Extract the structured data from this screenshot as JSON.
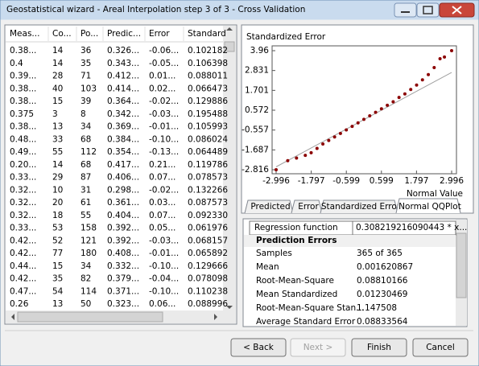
{
  "window": {
    "title": "Geostatistical wizard - Areal Interpolation step 3 of 3 - Cross Validation"
  },
  "table": {
    "columns": [
      "Meas...",
      "Co...",
      "Po...",
      "Predic...",
      "Error",
      "Standard"
    ],
    "rows": [
      [
        "0.38...",
        "14",
        "36",
        "0.326...",
        "-0.06...",
        "0.102182"
      ],
      [
        "0.4",
        "14",
        "35",
        "0.343...",
        "-0.05...",
        "0.106398"
      ],
      [
        "0.39...",
        "28",
        "71",
        "0.412...",
        "0.01...",
        "0.088011"
      ],
      [
        "0.38...",
        "40",
        "103",
        "0.414...",
        "0.02...",
        "0.066473"
      ],
      [
        "0.38...",
        "15",
        "39",
        "0.364...",
        "-0.02...",
        "0.129886"
      ],
      [
        "0.375",
        "3",
        "8",
        "0.342...",
        "-0.03...",
        "0.195488"
      ],
      [
        "0.38...",
        "13",
        "34",
        "0.369...",
        "-0.01...",
        "0.105993"
      ],
      [
        "0.48...",
        "33",
        "68",
        "0.384...",
        "-0.10...",
        "0.086024"
      ],
      [
        "0.49...",
        "55",
        "112",
        "0.354...",
        "-0.13...",
        "0.064489"
      ],
      [
        "0.20...",
        "14",
        "68",
        "0.417...",
        "0.21...",
        "0.119786"
      ],
      [
        "0.33...",
        "29",
        "87",
        "0.406...",
        "0.07...",
        "0.078573"
      ],
      [
        "0.32...",
        "10",
        "31",
        "0.298...",
        "-0.02...",
        "0.132266"
      ],
      [
        "0.32...",
        "20",
        "61",
        "0.361...",
        "0.03...",
        "0.087573"
      ],
      [
        "0.32...",
        "18",
        "55",
        "0.404...",
        "0.07...",
        "0.092330"
      ],
      [
        "0.33...",
        "53",
        "158",
        "0.392...",
        "0.05...",
        "0.061976"
      ],
      [
        "0.42...",
        "52",
        "121",
        "0.392...",
        "-0.03...",
        "0.068157"
      ],
      [
        "0.42...",
        "77",
        "180",
        "0.408...",
        "-0.01...",
        "0.065892"
      ],
      [
        "0.44...",
        "15",
        "34",
        "0.332...",
        "-0.10...",
        "0.129666"
      ],
      [
        "0.42...",
        "35",
        "82",
        "0.379...",
        "-0.04...",
        "0.078098"
      ],
      [
        "0.47...",
        "54",
        "114",
        "0.371...",
        "-0.10...",
        "0.110238"
      ],
      [
        "0.26",
        "13",
        "50",
        "0.323...",
        "0.06...",
        "0.088996"
      ]
    ]
  },
  "qq_plot": {
    "type": "scatter",
    "title": "Standardized Error",
    "x_label": "Normal Value",
    "color": "#8b0000",
    "x": [
      -2.996,
      -2.6,
      -2.3,
      -2.0,
      -1.8,
      -1.6,
      -1.4,
      -1.2,
      -1.0,
      -0.8,
      -0.6,
      -0.4,
      -0.2,
      0,
      0.2,
      0.4,
      0.6,
      0.8,
      1.0,
      1.2,
      1.4,
      1.6,
      1.8,
      2.0,
      2.2,
      2.4,
      2.6,
      2.75,
      2.996
    ],
    "y": [
      -2.816,
      -2.3,
      -2.15,
      -2.0,
      -1.85,
      -1.6,
      -1.35,
      -1.15,
      -0.95,
      -0.75,
      -0.55,
      -0.35,
      -0.15,
      0.05,
      0.25,
      0.45,
      0.65,
      0.85,
      1.05,
      1.3,
      1.5,
      1.75,
      2.0,
      2.3,
      2.6,
      3.0,
      3.5,
      3.6,
      3.96
    ],
    "xlim": [
      -2.996,
      2.996
    ],
    "ylim": [
      -2.816,
      3.96
    ],
    "xticks": [
      -2.996,
      -1.797,
      -0.599,
      0.599,
      1.797,
      2.996
    ],
    "yticks": [
      3.96,
      2.831,
      1.701,
      0.572,
      -0.557,
      -1.687,
      -2.816
    ],
    "reference_line": {
      "x": [
        -2.996,
        2.996
      ],
      "y": [
        -2.65,
        2.72
      ],
      "color": "#a0a0a0"
    }
  },
  "tabs": [
    "Predicted",
    "Error",
    "Standardized Error",
    "Normal QQPlot"
  ],
  "active_tab": 3,
  "properties": {
    "regression_function": [
      "Regression function",
      "0.308219216090443 * x..."
    ],
    "section": "Prediction Errors",
    "rows": [
      [
        "Samples",
        "365 of 365"
      ],
      [
        "Mean",
        "0.001620867"
      ],
      [
        "Root-Mean-Square",
        "0.08810166"
      ],
      [
        "Mean Standardized",
        "0.01230469"
      ],
      [
        "Root-Mean-Square Stan...",
        "1.147508"
      ],
      [
        "Average Standard Error",
        "0.08833564"
      ]
    ]
  },
  "buttons": [
    "< Back",
    "Next >",
    "Finish",
    "Cancel"
  ],
  "disabled_button": 1
}
